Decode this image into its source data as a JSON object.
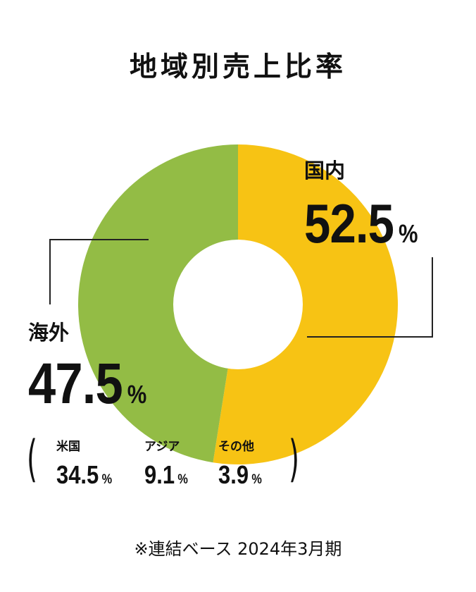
{
  "title": "地域別売上比率",
  "chart_data": {
    "type": "pie",
    "donut": true,
    "title": "地域別売上比率",
    "slices": [
      {
        "label": "国内",
        "value": 52.5,
        "unit": "%",
        "color": "#f7c314"
      },
      {
        "label": "海外",
        "value": 47.5,
        "unit": "%",
        "color": "#93bc45"
      }
    ],
    "breakdown": {
      "parent": "海外",
      "items": [
        {
          "label": "米国",
          "value": 34.5,
          "unit": "%"
        },
        {
          "label": "アジア",
          "value": 9.1,
          "unit": "%"
        },
        {
          "label": "その他",
          "value": 3.9,
          "unit": "%"
        }
      ]
    }
  },
  "labels": {
    "domestic_name": "国内",
    "domestic_value": "52.5",
    "overseas_name": "海外",
    "overseas_value": "47.5",
    "percent": "%",
    "us_name": "米国",
    "us_value": "34.5",
    "asia_name": "アジア",
    "asia_value": "9.1",
    "other_name": "その他",
    "other_value": "3.9",
    "paren_open": "(",
    "paren_close": ")"
  },
  "note": "※連結ベース 2024年3月期"
}
